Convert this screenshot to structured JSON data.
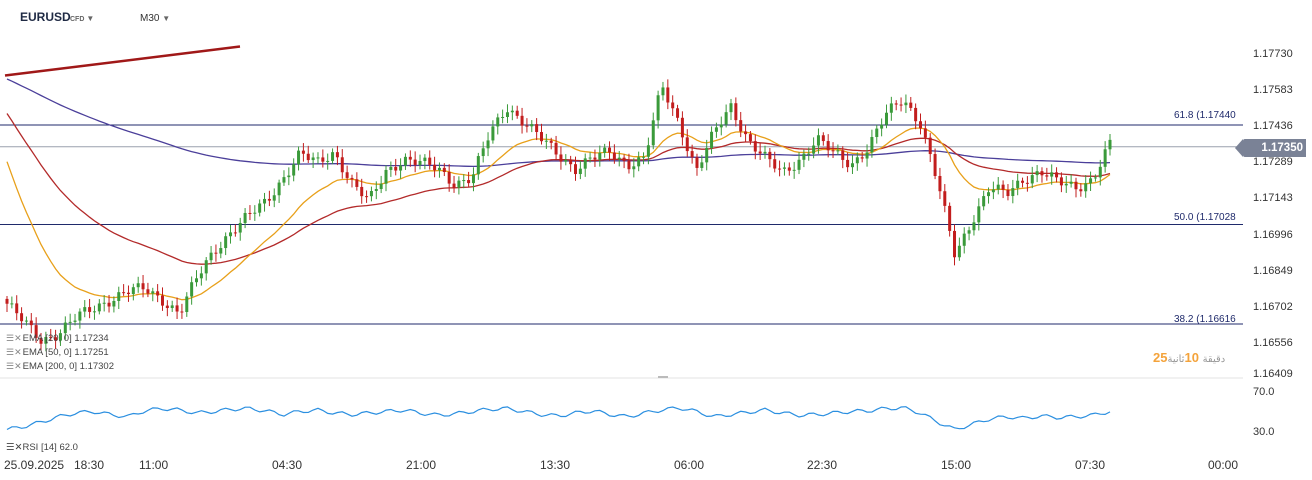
{
  "header": {
    "symbol": "EURUSD",
    "type_badge": "CFD",
    "timeframe": "M30",
    "caret": "▼"
  },
  "indicators": [
    {
      "label": "EMA  [20,  0]  1.17234",
      "color": "#e8a01a"
    },
    {
      "label": "EMA  [50,  0]  1.17251",
      "color": "#b32a2a"
    },
    {
      "label": "EMA  [200,  0]  1.17302",
      "color": "#4b3f9a"
    }
  ],
  "fib_levels": [
    {
      "label": "61.8 (1.17440",
      "price": 1.1744
    },
    {
      "label": "50.0 (1.17028",
      "price": 1.17028
    },
    {
      "label": "38.2 (1.16616",
      "price": 1.16616
    }
  ],
  "current_price": "1.17350",
  "countdown": {
    "value": "25",
    "label1": "دقيقة",
    "value2": "10",
    "label2": "ثانية"
  },
  "rsi": {
    "label": "RSI  [14]  62.0",
    "levels": [
      "70.0",
      "30.0"
    ]
  },
  "chart_data": {
    "type": "candlestick",
    "symbol": "EURUSD",
    "timeframe": "M30",
    "y_ticks": [
      "1.17730",
      "1.17583",
      "1.17436",
      "1.17289",
      "1.17143",
      "1.16996",
      "1.16849",
      "1.16702",
      "1.16556",
      "1.16409"
    ],
    "ylim": [
      1.16409,
      1.1773
    ],
    "x_ticks": [
      "25.09.2025",
      "18:30",
      "11:00",
      "04:30",
      "21:00",
      "13:30",
      "06:00",
      "22:30",
      "15:00",
      "07:30",
      "00:00"
    ],
    "close_path": [
      1.167,
      1.1662,
      1.1655,
      1.1658,
      1.1664,
      1.1668,
      1.1672,
      1.1675,
      1.1676,
      1.1672,
      1.1666,
      1.168,
      1.1692,
      1.17,
      1.1706,
      1.1712,
      1.1722,
      1.1732,
      1.1728,
      1.1733,
      1.172,
      1.1712,
      1.1725,
      1.173,
      1.1728,
      1.1726,
      1.172,
      1.1722,
      1.174,
      1.1752,
      1.1745,
      1.1738,
      1.1732,
      1.1726,
      1.173,
      1.1733,
      1.1728,
      1.173,
      1.176,
      1.1745,
      1.1725,
      1.174,
      1.1752,
      1.1738,
      1.173,
      1.1724,
      1.173,
      1.1738,
      1.1732,
      1.1728,
      1.1735,
      1.1748,
      1.1755,
      1.1745,
      1.172,
      1.169,
      1.1705,
      1.1718,
      1.1715,
      1.1722,
      1.1725,
      1.172,
      1.1718,
      1.1722,
      1.1736
    ],
    "ema20_end": 1.17234,
    "ema50_end": 1.17251,
    "ema200_end": 1.17302,
    "rsi_path": [
      38,
      42,
      48,
      55,
      60,
      62,
      58,
      55,
      63,
      66,
      64,
      60,
      62,
      65,
      66,
      63,
      58,
      62,
      64,
      60,
      58,
      60,
      62,
      64,
      60,
      57,
      59,
      62,
      65,
      66,
      62,
      58,
      56,
      60,
      63,
      58,
      55,
      60,
      64,
      67,
      62,
      55,
      58,
      61,
      64,
      60,
      57,
      58,
      60,
      62,
      63,
      66,
      67,
      60,
      48,
      38,
      45,
      52,
      55,
      53,
      56,
      54,
      55,
      57,
      62
    ],
    "rsi_levels": [
      70,
      30
    ]
  }
}
